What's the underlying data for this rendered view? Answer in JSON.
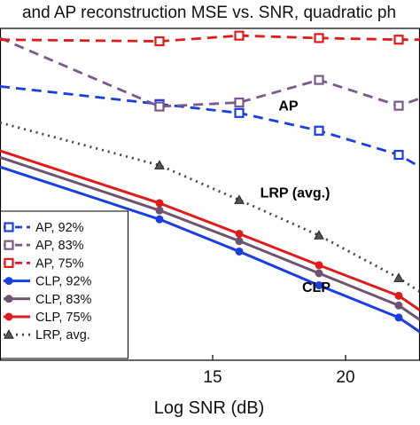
{
  "chart_data": {
    "type": "line",
    "title": "and AP reconstruction MSE vs. SNR, quadratic ph",
    "xlabel": "Log SNR (dB)",
    "ylabel": "",
    "xlim": [
      7.0,
      22.8
    ],
    "ylim": [
      -3.4,
      0.72
    ],
    "xticks": [
      15,
      20
    ],
    "xtick_labels": [
      "15",
      "20"
    ],
    "grid": false,
    "legend_position": "lower-left",
    "series": [
      {
        "name": "AP, 92%",
        "color": "#1a3fe0",
        "style": "dashed",
        "marker": "square-open",
        "x": [
          7.0,
          13.0,
          16.0,
          19.0,
          22.0,
          22.8
        ],
        "y": [
          0.0,
          -0.22,
          -0.33,
          -0.55,
          -0.85,
          -1.0
        ]
      },
      {
        "name": "AP, 83%",
        "color": "#7b5a8a",
        "style": "dashed",
        "marker": "square-open",
        "x": [
          7.0,
          13.0,
          16.0,
          19.0,
          22.0,
          22.8
        ],
        "y": [
          0.6,
          -0.25,
          -0.2,
          0.08,
          -0.24,
          -0.15
        ]
      },
      {
        "name": "AP, 75%",
        "color": "#e11b1b",
        "style": "dashed",
        "marker": "square-open",
        "x": [
          7.0,
          13.0,
          16.0,
          19.0,
          22.0,
          22.8
        ],
        "y": [
          0.58,
          0.56,
          0.63,
          0.6,
          0.58,
          0.58
        ]
      },
      {
        "name": "CLP, 92%",
        "color": "#1a3fe0",
        "style": "solid",
        "marker": "circle-filled",
        "x": [
          7.0,
          13.0,
          16.0,
          19.0,
          22.0,
          22.8
        ],
        "y": [
          -1.0,
          -1.65,
          -2.05,
          -2.47,
          -2.87,
          -3.05
        ]
      },
      {
        "name": "CLP, 83%",
        "color": "#6e5470",
        "style": "solid",
        "marker": "circle-filled",
        "x": [
          7.0,
          13.0,
          16.0,
          19.0,
          22.0,
          22.8
        ],
        "y": [
          -0.88,
          -1.54,
          -1.92,
          -2.32,
          -2.72,
          -2.9
        ]
      },
      {
        "name": "CLP, 75%",
        "color": "#e11b1b",
        "style": "solid",
        "marker": "circle-filled",
        "x": [
          7.0,
          13.0,
          16.0,
          19.0,
          22.0,
          22.8
        ],
        "y": [
          -0.8,
          -1.45,
          -1.83,
          -2.22,
          -2.6,
          -2.78
        ]
      },
      {
        "name": "LRP, avg.",
        "color": "#444444",
        "style": "dotted",
        "marker": "triangle-filled",
        "x": [
          7.0,
          13.0,
          16.0,
          19.0,
          22.0,
          22.8
        ],
        "y": [
          -0.45,
          -0.98,
          -1.41,
          -1.85,
          -2.38,
          -2.55
        ]
      }
    ],
    "annotations": [
      {
        "text": "AP",
        "x": 17.85,
        "y": -0.3
      },
      {
        "text": "LRP (avg.)",
        "x": 18.1,
        "y": -1.38
      },
      {
        "text": "CLP",
        "x": 18.9,
        "y": -2.55
      }
    ]
  }
}
